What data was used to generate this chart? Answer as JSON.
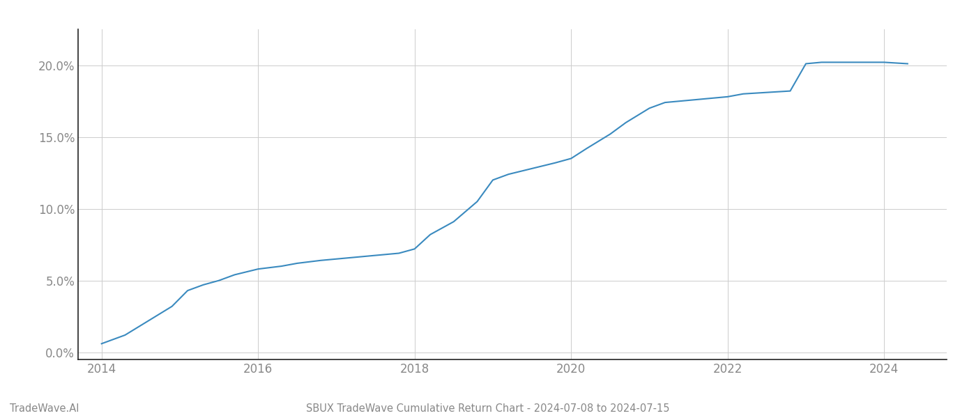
{
  "title": "SBUX TradeWave Cumulative Return Chart - 2024-07-08 to 2024-07-15",
  "footer_left": "TradeWave.AI",
  "x_years": [
    2014.0,
    2014.3,
    2014.6,
    2014.9,
    2015.1,
    2015.3,
    2015.5,
    2015.7,
    2016.0,
    2016.3,
    2016.5,
    2016.8,
    2017.0,
    2017.2,
    2017.4,
    2017.6,
    2017.8,
    2018.0,
    2018.2,
    2018.5,
    2018.8,
    2019.0,
    2019.2,
    2019.5,
    2019.8,
    2020.0,
    2020.2,
    2020.5,
    2020.7,
    2021.0,
    2021.2,
    2021.4,
    2021.6,
    2021.8,
    2022.0,
    2022.2,
    2022.5,
    2022.8,
    2023.0,
    2023.2,
    2023.5,
    2023.8,
    2024.0,
    2024.3
  ],
  "y_values": [
    0.006,
    0.012,
    0.022,
    0.032,
    0.043,
    0.047,
    0.05,
    0.054,
    0.058,
    0.06,
    0.062,
    0.064,
    0.065,
    0.066,
    0.067,
    0.068,
    0.069,
    0.072,
    0.082,
    0.091,
    0.105,
    0.12,
    0.124,
    0.128,
    0.132,
    0.135,
    0.142,
    0.152,
    0.16,
    0.17,
    0.174,
    0.175,
    0.176,
    0.177,
    0.178,
    0.18,
    0.181,
    0.182,
    0.201,
    0.202,
    0.202,
    0.202,
    0.202,
    0.201
  ],
  "line_color": "#3a8abf",
  "line_width": 1.5,
  "background_color": "#ffffff",
  "grid_color": "#cccccc",
  "ytick_labels": [
    "0.0%",
    "5.0%",
    "10.0%",
    "15.0%",
    "20.0%"
  ],
  "ytick_values": [
    0.0,
    0.05,
    0.1,
    0.15,
    0.2
  ],
  "xtick_labels": [
    "2014",
    "2016",
    "2018",
    "2020",
    "2022",
    "2024"
  ],
  "xtick_values": [
    2014,
    2016,
    2018,
    2020,
    2022,
    2024
  ],
  "xlim": [
    2013.7,
    2024.8
  ],
  "ylim": [
    -0.005,
    0.225
  ],
  "title_fontsize": 10.5,
  "footer_fontsize": 10.5,
  "tick_fontsize": 12,
  "tick_color": "#888888",
  "left_spine_color": "#222222",
  "bottom_spine_color": "#222222"
}
